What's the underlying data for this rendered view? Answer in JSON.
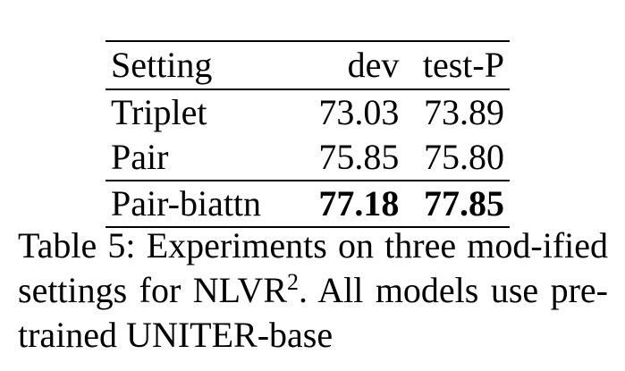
{
  "table": {
    "headers": [
      "Setting",
      "dev",
      "test-P"
    ],
    "rows": [
      {
        "setting": "Triplet",
        "dev": "73.03",
        "test": "73.89"
      },
      {
        "setting": "Pair",
        "dev": "75.85",
        "test": "75.80"
      },
      {
        "setting": "Pair-biattn",
        "dev": "77.18",
        "test": "77.85"
      }
    ]
  },
  "caption": {
    "lead": "Table 5: Experiments on three mod-ified settings for NLVR",
    "superscript": "2",
    "tail": ". All models use pre-trained UNITER-base"
  }
}
